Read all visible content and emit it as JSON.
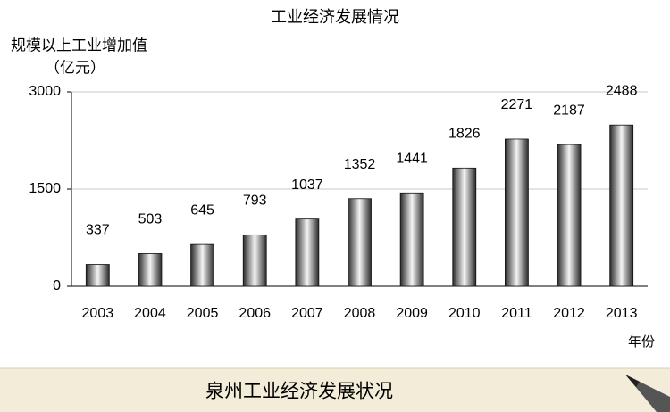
{
  "chart_data": {
    "type": "bar",
    "title": "工业经济发展情况",
    "y_axis_label": [
      "规模以上工业增加值",
      "（亿元）"
    ],
    "x_axis_label": "年份",
    "categories": [
      "2003",
      "2004",
      "2005",
      "2006",
      "2007",
      "2008",
      "2009",
      "2010",
      "2011",
      "2012",
      "2013"
    ],
    "values": [
      337,
      503,
      645,
      793,
      1037,
      1352,
      1441,
      1826,
      2271,
      2187,
      2488
    ],
    "color": "#2a2a2a",
    "ylim": [
      0,
      3000
    ],
    "yticks": [
      0,
      1500,
      3000
    ],
    "grid": true
  },
  "footer": {
    "text": "泉州工业经济发展状况"
  }
}
